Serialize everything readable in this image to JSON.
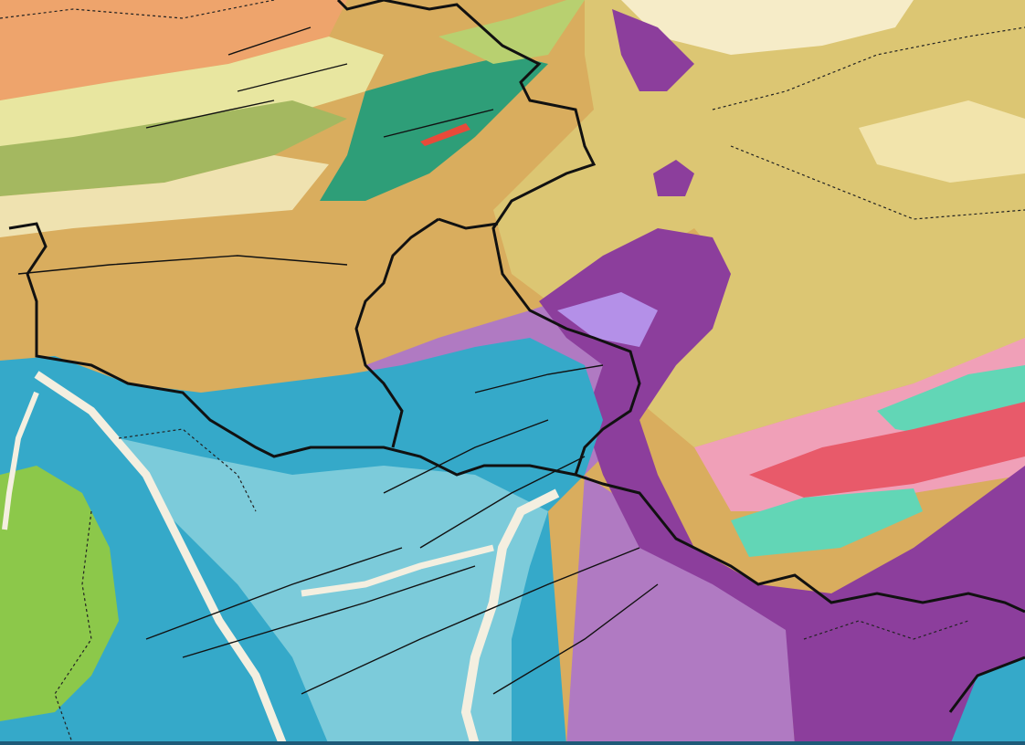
{
  "map": {
    "kind": "geological map",
    "colors": {
      "salmon": "#eea46c",
      "pale_yellow": "#e8e6a0",
      "olive": "#a4b860",
      "tan": "#d9ad5e",
      "khaki": "#dcc673",
      "cream": "#f6ecc8",
      "teal_green": "#2e9e78",
      "purple_dark": "#8c3e9c",
      "purple_mid": "#b07ac2",
      "lavender": "#b490e8",
      "blue": "#35a9c9",
      "light_blue": "#7ccbda",
      "river": "#f4efe0",
      "green": "#8cc84a",
      "pink": "#f0a0b8",
      "red": "#e85a6a",
      "aqua": "#62d6b6",
      "border": "#111111",
      "frame": "#1e5a78"
    }
  }
}
